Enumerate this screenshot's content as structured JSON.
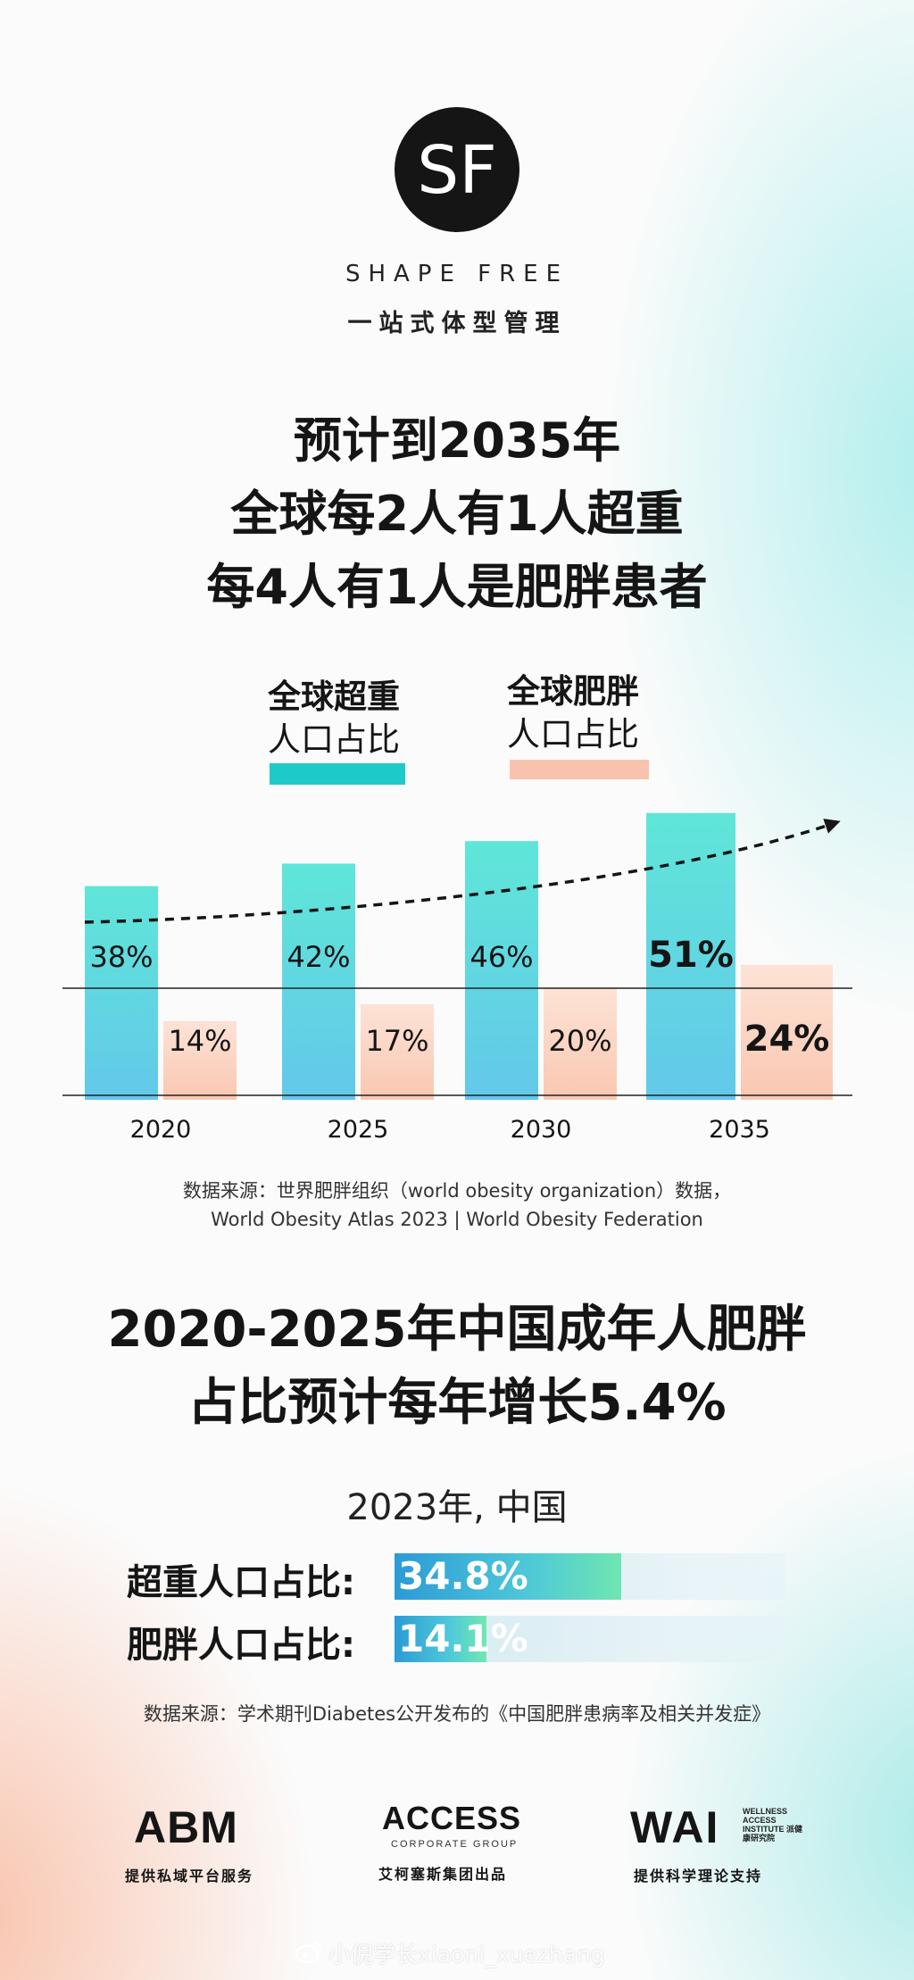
{
  "brand": {
    "logo_text": "SF",
    "name_en": "SHAPE FREE",
    "name_cn": "一站式体型管理"
  },
  "headline": {
    "line1": "预计到2035年",
    "line2": "全球每2人有1人超重",
    "line3": "每4人有1人是肥胖患者"
  },
  "chart_data": {
    "type": "bar",
    "categories": [
      "2020",
      "2025",
      "2030",
      "2035"
    ],
    "series": [
      {
        "name": "全球超重人口占比",
        "values": [
          38,
          42,
          46,
          51
        ],
        "labels": [
          "38%",
          "42%",
          "46%",
          "51%"
        ],
        "color": "#3fd6cf"
      },
      {
        "name": "全球肥胖人口占比",
        "values": [
          14,
          17,
          20,
          24
        ],
        "labels": [
          "14%",
          "17%",
          "20%",
          "24%"
        ],
        "color": "#fcd4c2"
      }
    ],
    "legend": [
      {
        "line1": "全球超重",
        "line2": "人口占比",
        "color": "#1ec9c9"
      },
      {
        "line1": "全球肥胖",
        "line2": "人口占比",
        "color": "#f8c3ae"
      }
    ],
    "trend_arrow": true,
    "legend_position": "top"
  },
  "source1": {
    "line1": "数据来源：世界肥胖组织（world obesity organization）数据，",
    "line2": "World Obesity Atlas 2023 | World Obesity Federation"
  },
  "headline2": {
    "line1": "2020-2025年中国成年人肥胖",
    "line2": "占比预计每年增长5.4%"
  },
  "china": {
    "title": "2023年, 中国",
    "stats": [
      {
        "label": "超重人口占比:",
        "value": "34.8%",
        "percent": 34.8
      },
      {
        "label": "肥胖人口占比:",
        "value": "14.1%",
        "percent": 14.1
      }
    ]
  },
  "source2": "数据来源：学术期刊Diabetes公开发布的《中国肥胖患病率及相关并发症》",
  "partners": [
    {
      "logo": "ABM",
      "caption": "提供私域平台服务"
    },
    {
      "logo": "ACCESS",
      "sub": "CORPORATE GROUP",
      "caption": "艾柯塞斯集团出品"
    },
    {
      "logo": "WAI",
      "sub": "WELLNESS ACCESS INSTITUTE 派健康研究院",
      "caption": "提供科学理论支持"
    }
  ],
  "watermark": "小倪学长xiaoni_xuezhang"
}
